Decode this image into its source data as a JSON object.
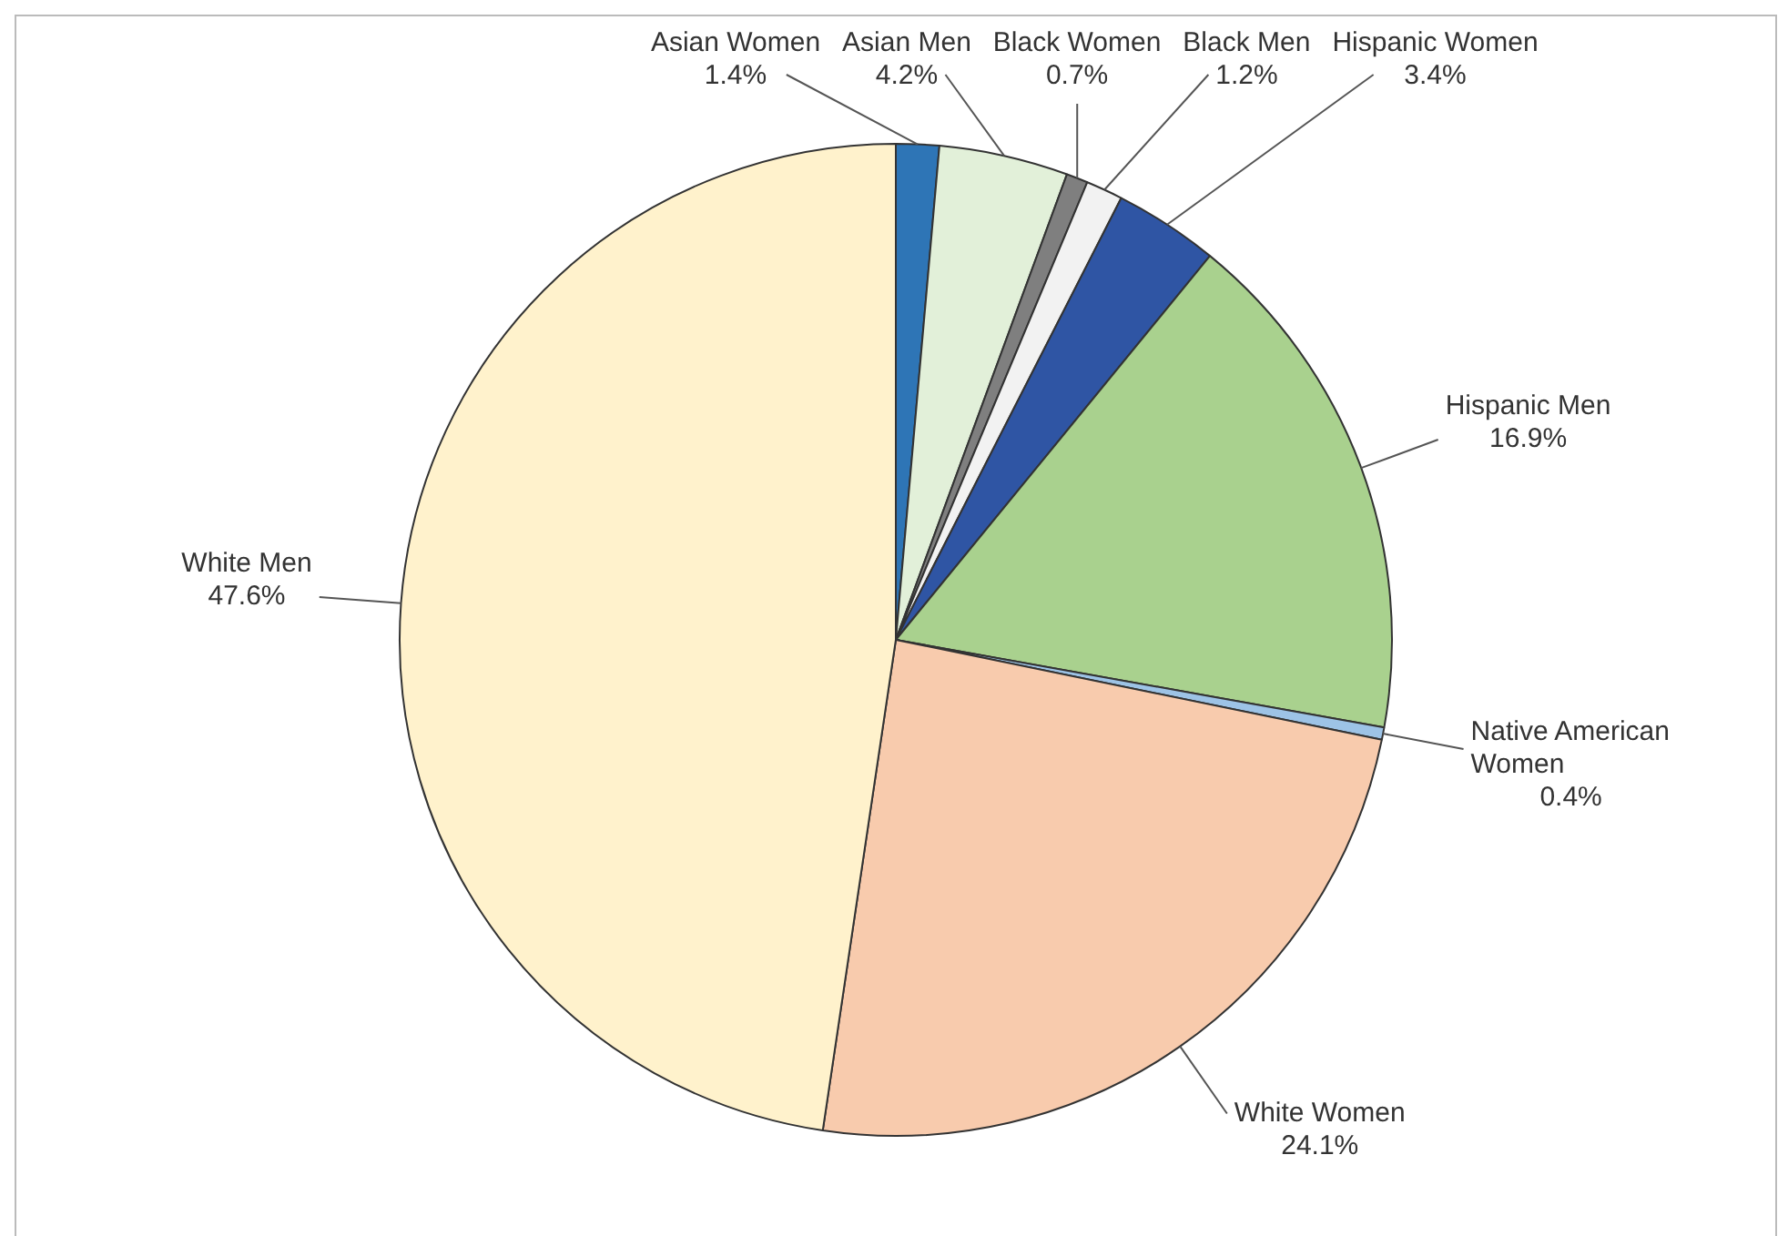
{
  "chart_data": {
    "type": "pie",
    "categories": [
      "Asian Women",
      "Asian Men",
      "Black Women",
      "Black Men",
      "Hispanic Women",
      "Hispanic Men",
      "Native American Women",
      "White Women",
      "White Men"
    ],
    "values": [
      1.4,
      4.2,
      0.7,
      1.2,
      3.4,
      16.9,
      0.4,
      24.1,
      47.6
    ],
    "colors": [
      "#2e75b6",
      "#e2f0d9",
      "#7f7f7f",
      "#f2f2f2",
      "#2f55a4",
      "#a9d18e",
      "#9dc3e6",
      "#f8cbad",
      "#fff2cc"
    ],
    "value_labels": [
      "1.4%",
      "4.2%",
      "0.7%",
      "1.2%",
      "3.4%",
      "16.9%",
      "0.4%",
      "24.1%",
      "47.6%"
    ]
  }
}
